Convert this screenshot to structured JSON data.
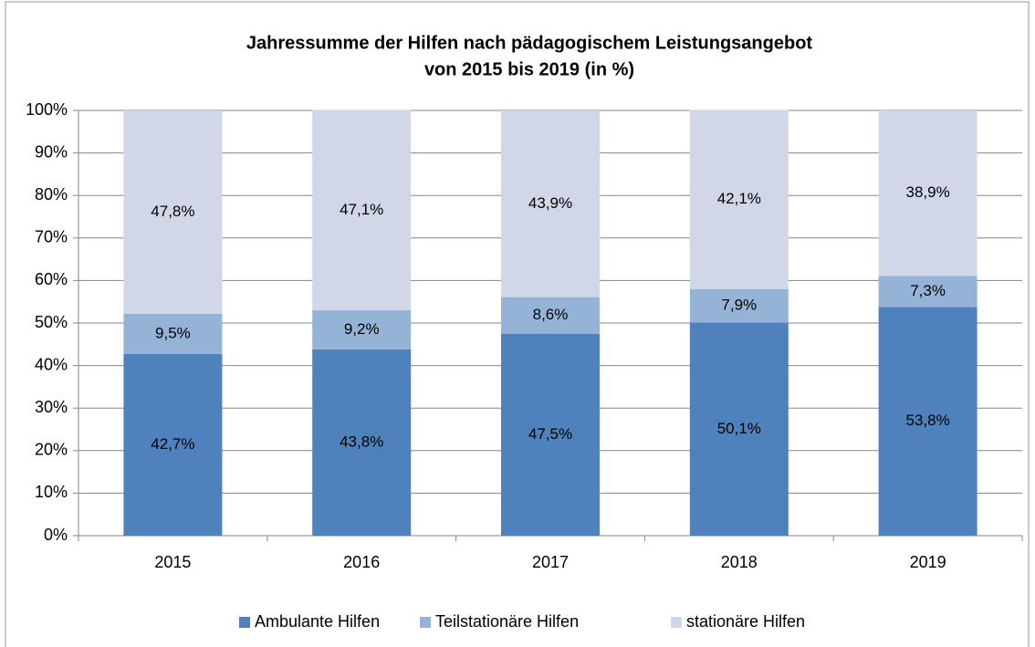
{
  "chart_data": {
    "type": "stacked_bar",
    "title": [
      "Jahressumme der Hilfen nach pädagogischem Leistungsangebot",
      "von 2015 bis 2019 (in %)"
    ],
    "categories": [
      "2015",
      "2016",
      "2017",
      "2018",
      "2019"
    ],
    "series": [
      {
        "name": "Ambulante Hilfen",
        "color": "#4f81bd",
        "values": [
          42.7,
          43.8,
          47.5,
          50.1,
          53.8
        ],
        "value_labels": [
          "42,7%",
          "43,8%",
          "47,5%",
          "50,1%",
          "53,8%"
        ]
      },
      {
        "name": "Teilstationäre Hilfen",
        "color": "#95b3d7",
        "values": [
          9.5,
          9.2,
          8.6,
          7.9,
          7.3
        ],
        "value_labels": [
          "9,5%",
          "9,2%",
          "8,6%",
          "7,9%",
          "7,3%"
        ]
      },
      {
        "name": "stationäre Hilfen",
        "color": "#d0d8e8",
        "values": [
          47.8,
          47.1,
          43.9,
          42.1,
          38.9
        ],
        "value_labels": [
          "47,8%",
          "47,1%",
          "43,9%",
          "42,1%",
          "38,9%"
        ]
      }
    ],
    "ylim": [
      0,
      100
    ],
    "yticks": [
      {
        "value": 0,
        "label": "0%"
      },
      {
        "value": 10,
        "label": "10%"
      },
      {
        "value": 20,
        "label": "20%"
      },
      {
        "value": 30,
        "label": "30%"
      },
      {
        "value": 40,
        "label": "40%"
      },
      {
        "value": 50,
        "label": "50%"
      },
      {
        "value": 60,
        "label": "60%"
      },
      {
        "value": 70,
        "label": "70%"
      },
      {
        "value": 80,
        "label": "80%"
      },
      {
        "value": 90,
        "label": "90%"
      },
      {
        "value": 100,
        "label": "100%"
      }
    ],
    "grid": true,
    "legend": "bottom"
  }
}
